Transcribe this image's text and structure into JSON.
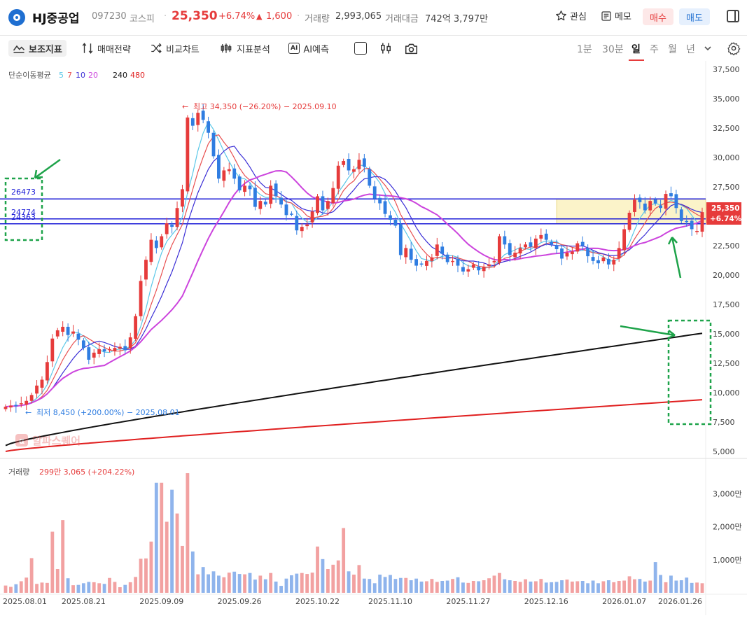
{
  "header": {
    "name": "HJ중공업",
    "code": "097230",
    "market": "코스피",
    "price": "25,350",
    "change_pct": "+6.74%",
    "change_arrow": "▲",
    "change_val": "1,600",
    "volume_label": "거래량",
    "volume_value": "2,993,065",
    "amount_label": "거래대금",
    "amount_value": "742억 3,797만",
    "watch_label": "관심",
    "memo_label": "메모",
    "buy_label": "매수",
    "sell_label": "매도"
  },
  "toolbar": {
    "indicators": "보조지표",
    "strategy": "매매전략",
    "compare": "비교차트",
    "indicator_analysis": "지표분석",
    "ai_icon_text": "AI",
    "ai_forecast": "AI예측",
    "intervals": [
      "1분",
      "30분",
      "일",
      "주",
      "월",
      "년"
    ],
    "selected_interval": "일"
  },
  "colors": {
    "up": "#e63b3b",
    "down": "#2f7de1",
    "ma5": "#5bc8e8",
    "ma7": "#e85050",
    "ma10": "#3b2fd6",
    "ma20": "#cc44dd",
    "ma240": "#111111",
    "ma480": "#e02020",
    "hline": "#1a1ad6",
    "annot_green": "#1ea34a",
    "volume_up": "#f2a1a1",
    "volume_down": "#8fb4ec"
  },
  "chart_data": [
    {
      "type": "candlestick",
      "title": "",
      "legend": {
        "name": "단순이동평균",
        "periods": [
          "5",
          "7",
          "10",
          "20",
          "240",
          "480"
        ]
      },
      "x_ticks": [
        "2025.08.01",
        "2025.08.21",
        "2025.09.09",
        "2025.09.26",
        "2025.10.22",
        "2025.11.10",
        "2025.11.27",
        "2025.12.16",
        "2026.01.07",
        "2026.01.26"
      ],
      "y_ticks": [
        "37,500",
        "35,000",
        "32,500",
        "30,000",
        "27,500",
        "25,000",
        "22,500",
        "20,000",
        "17,500",
        "15,000",
        "12,500",
        "10,000",
        "7,500",
        "5,000"
      ],
      "ylim": [
        5000,
        37500
      ],
      "candles_close": [
        8800,
        8900,
        8850,
        9100,
        9300,
        9800,
        10600,
        11100,
        12600,
        14600,
        15300,
        15600,
        14900,
        15200,
        14500,
        13800,
        12800,
        13400,
        13700,
        13500,
        13700,
        13800,
        13900,
        13600,
        14700,
        16500,
        19500,
        21300,
        23000,
        22300,
        23300,
        24400,
        24100,
        25700,
        27300,
        33400,
        32700,
        33800,
        33200,
        32100,
        30100,
        28200,
        28900,
        29000,
        28200,
        27200,
        27600,
        27300,
        25800,
        26300,
        26000,
        27600,
        26700,
        26000,
        25100,
        25200,
        23800,
        24100,
        24300,
        25400,
        26700,
        25500,
        26300,
        27400,
        29300,
        29700,
        28900,
        29000,
        29800,
        29200,
        27600,
        26500,
        26100,
        25200,
        24700,
        24200,
        21700,
        22300,
        21300,
        20800,
        20900,
        21200,
        21500,
        22600,
        21800,
        21100,
        21200,
        20800,
        20300,
        20500,
        20900,
        20400,
        20700,
        20900,
        21200,
        23300,
        22600,
        21700,
        21900,
        22300,
        22600,
        22400,
        23100,
        23400,
        23000,
        22600,
        22200,
        21400,
        21900,
        22000,
        22700,
        22500,
        21600,
        21200,
        21000,
        21500,
        20900,
        21300,
        22300,
        23900,
        25300,
        26400,
        26200,
        25500,
        26300,
        26100,
        25700,
        26900,
        26700,
        25700,
        24600,
        24500,
        23900,
        23750,
        25350
      ],
      "annotations": [
        {
          "text": "최고 34,350 (−26.20%) − 2025.09.10",
          "prefix": "←"
        },
        {
          "text": "최저 8,450 (+200.00%) − 2025.08.01",
          "prefix": "←"
        }
      ],
      "horizontal_lines": [
        {
          "label": "26473",
          "value": 26473
        },
        {
          "label": "24774",
          "value": 24774
        },
        {
          "label": "24363",
          "value": 24363
        }
      ],
      "last_price_tag": {
        "price": "25,350",
        "pct": "+6.74%"
      },
      "watermark": "알파스퀘어"
    },
    {
      "type": "bar",
      "title": "거래량",
      "current_value": "299만 3,065 (+204.22%)",
      "y_ticks": [
        "3,000만",
        "2,000만",
        "1,000만"
      ],
      "ylim": [
        0,
        3600
      ],
      "unit": "만",
      "values": [
        220,
        180,
        260,
        350,
        460,
        1050,
        270,
        310,
        300,
        1850,
        720,
        2200,
        440,
        230,
        240,
        290,
        330,
        320,
        290,
        270,
        450,
        330,
        170,
        240,
        320,
        480,
        1030,
        1040,
        1550,
        3330,
        3330,
        2150,
        3120,
        2400,
        1420,
        3620,
        1250,
        560,
        780,
        560,
        650,
        520,
        470,
        610,
        640,
        570,
        560,
        600,
        400,
        520,
        410,
        600,
        340,
        210,
        430,
        530,
        580,
        600,
        570,
        610,
        1400,
        1020,
        720,
        850,
        980,
        1960,
        650,
        550,
        840,
        430,
        420,
        290,
        550,
        480,
        540,
        420,
        450,
        450,
        380,
        430,
        340,
        350,
        420,
        330,
        360,
        370,
        420,
        470,
        310,
        300,
        360,
        350,
        380,
        440,
        520,
        600,
        410,
        380,
        360,
        330,
        410,
        340,
        350,
        420,
        310,
        320,
        330,
        380,
        400,
        340,
        350,
        360,
        290,
        370,
        290,
        350,
        380,
        320,
        360,
        370,
        500,
        410,
        420,
        340,
        370,
        930,
        540,
        320,
        520,
        370,
        380,
        460,
        300,
        310,
        290,
        190,
        360
      ]
    }
  ]
}
